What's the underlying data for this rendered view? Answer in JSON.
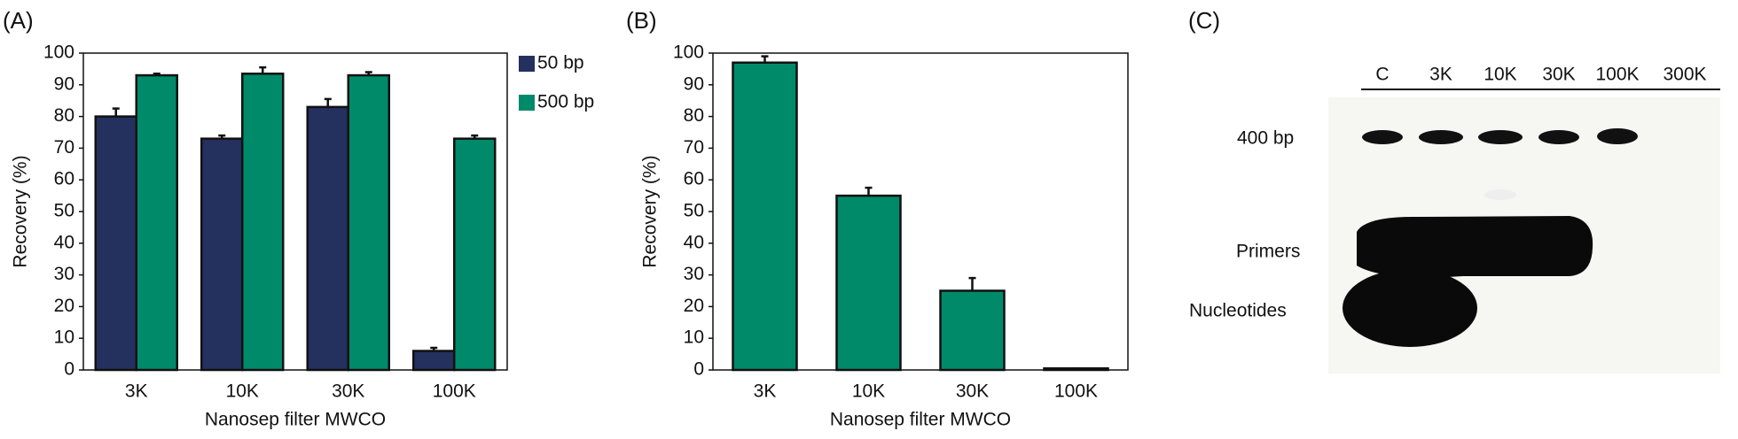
{
  "chart_data": [
    {
      "type": "bar",
      "panel_label": "(A)",
      "y_label": "Recovery (%)",
      "x_label": "Nanosep filter MWCO",
      "categories": [
        "3K",
        "10K",
        "30K",
        "100K"
      ],
      "series": [
        {
          "name": "50 bp",
          "color": "#24305e",
          "values": [
            80,
            73,
            83,
            6
          ],
          "errors": [
            2.5,
            1,
            2.5,
            1
          ]
        },
        {
          "name": "500 bp",
          "color": "#008a6a",
          "values": [
            93,
            93.5,
            93,
            73
          ],
          "errors": [
            0.5,
            2,
            1,
            1
          ]
        }
      ],
      "ylim": [
        0,
        100
      ],
      "yticks": [
        0,
        10,
        20,
        30,
        40,
        50,
        60,
        70,
        80,
        90,
        100
      ],
      "legend": "right"
    },
    {
      "type": "bar",
      "panel_label": "(B)",
      "y_label": "Recovery (%)",
      "x_label": "Nanosep filter MWCO",
      "categories": [
        "3K",
        "10K",
        "30K",
        "100K"
      ],
      "series": [
        {
          "color": "#008a6a",
          "values": [
            97,
            55,
            25,
            0.5
          ],
          "errors": [
            2,
            2.5,
            4,
            0
          ]
        }
      ],
      "ylim": [
        0,
        100
      ],
      "yticks": [
        0,
        10,
        20,
        30,
        40,
        50,
        60,
        70,
        80,
        90,
        100
      ]
    }
  ],
  "gel": {
    "panel_label": "(C)",
    "lanes": [
      "C",
      "3K",
      "10K",
      "30K",
      "100K",
      "300K"
    ],
    "band_labels": [
      "400 bp",
      "Primers",
      "Nucleotides"
    ]
  }
}
